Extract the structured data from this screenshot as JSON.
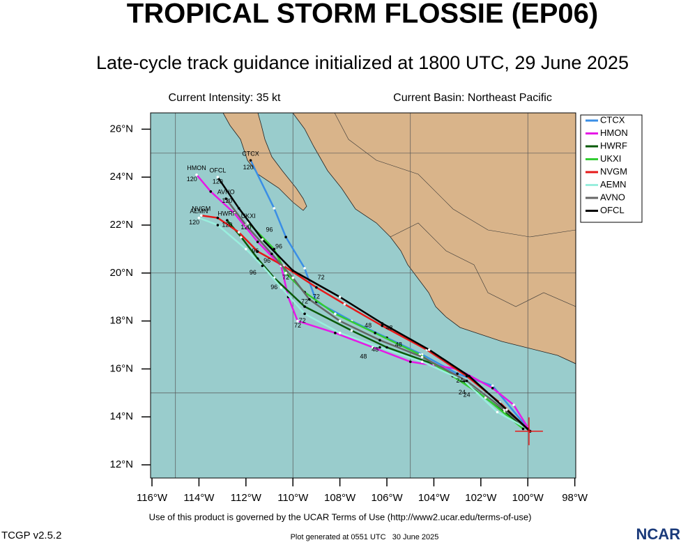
{
  "map": {
    "title": "TROPICAL STORM FLOSSIE (EP06)",
    "subtitle": "Late-cycle track guidance initialized at 1800 UTC, 29 June 2025",
    "intensity": "Current Intensity: 35 kt",
    "basin": "Current Basin: Northeast Pacific",
    "terms": "Use of this product is governed by the UCAR Terms of Use (http://www2.ucar.edu/terms-of-use)",
    "version": "TCGP v2.5.2",
    "generated": "Plot generated at 0551 UTC   30 June 2025",
    "logo": "NCAR",
    "lonlim": [
      -116.06,
      -97.96
    ],
    "latlim": [
      11.45,
      26.68
    ],
    "lonticks": [
      {
        "value": -116,
        "label": "116°W"
      },
      {
        "value": -114,
        "label": "114°W"
      },
      {
        "value": -112,
        "label": "112°W"
      },
      {
        "value": -110,
        "label": "110°W"
      },
      {
        "value": -108,
        "label": "108°W"
      },
      {
        "value": -106,
        "label": "106°W"
      },
      {
        "value": -104,
        "label": "104°W"
      },
      {
        "value": -102,
        "label": "102°W"
      },
      {
        "value": -100,
        "label": "100°W"
      },
      {
        "value": -98,
        "label": "98°W"
      }
    ],
    "latticks": [
      {
        "value": 12,
        "label": "12°N"
      },
      {
        "value": 14,
        "label": "14°N"
      },
      {
        "value": 16,
        "label": "16°N"
      },
      {
        "value": 18,
        "label": "18°N"
      },
      {
        "value": 20,
        "label": "20°N"
      },
      {
        "value": 22,
        "label": "22°N"
      },
      {
        "value": 24,
        "label": "24°N"
      },
      {
        "value": 26,
        "label": "26°N"
      }
    ],
    "grid_lon": [
      -115,
      -110,
      -105,
      -100
    ],
    "grid_lat": [
      15,
      20,
      25
    ],
    "current_position": [
      -99.95,
      13.4
    ],
    "tracks": [
      {
        "name": "CTCX",
        "color": "#3a8ee6",
        "points": [
          [
            -99.9,
            13.4
          ],
          [
            -101.5,
            15.3
          ],
          [
            -103,
            15.8
          ],
          [
            -104.5,
            16.6
          ],
          [
            -106,
            17.3
          ],
          [
            -107.5,
            18
          ],
          [
            -109,
            18.8
          ],
          [
            -109.5,
            20.2
          ],
          [
            -110.3,
            21.5
          ],
          [
            -110.8,
            22.7
          ],
          [
            -111.8,
            24.7
          ]
        ]
      },
      {
        "name": "HMON",
        "color": "#e619e6",
        "points": [
          [
            -99.9,
            13.4
          ],
          [
            -100.6,
            14.5
          ],
          [
            -101.5,
            15.2
          ],
          [
            -103,
            16
          ],
          [
            -105,
            16.3
          ],
          [
            -106.6,
            16.9
          ],
          [
            -108.2,
            17.5
          ],
          [
            -109.8,
            18
          ],
          [
            -110.2,
            19
          ],
          [
            -110.5,
            20.3
          ],
          [
            -111.5,
            21.3
          ],
          [
            -112.5,
            22.5
          ],
          [
            -113.5,
            23.4
          ],
          [
            -114.1,
            24.1
          ]
        ]
      },
      {
        "name": "HWRF",
        "color": "#0a5a0a",
        "points": [
          [
            -99.9,
            13.4
          ],
          [
            -101,
            14.2
          ],
          [
            -102.5,
            15.3
          ],
          [
            -104,
            16.2
          ],
          [
            -106,
            16.9
          ],
          [
            -107.5,
            17.6
          ],
          [
            -109.5,
            18.6
          ],
          [
            -110.8,
            19.8
          ],
          [
            -111.5,
            20.6
          ],
          [
            -112.2,
            21.5
          ],
          [
            -112.8,
            22.2
          ]
        ]
      },
      {
        "name": "UKXI",
        "color": "#33cc33",
        "points": [
          [
            -100.2,
            13.5
          ],
          [
            -101.8,
            14.8
          ],
          [
            -103.2,
            15.7
          ],
          [
            -104.6,
            16.6
          ],
          [
            -106.5,
            17.5
          ],
          [
            -108.2,
            18.3
          ],
          [
            -109.5,
            19.2
          ],
          [
            -110.3,
            20
          ],
          [
            -110.8,
            21
          ],
          [
            -111.9,
            22.1
          ]
        ]
      },
      {
        "name": "NVGM",
        "color": "#e61919",
        "points": [
          [
            -99.9,
            13.4
          ],
          [
            -101.2,
            14.6
          ],
          [
            -102.6,
            15.7
          ],
          [
            -104.3,
            16.8
          ],
          [
            -106.2,
            17.8
          ],
          [
            -107.8,
            18.7
          ],
          [
            -109,
            19.4
          ],
          [
            -110.4,
            20.3
          ],
          [
            -111.5,
            20.9
          ],
          [
            -112.3,
            21.7
          ],
          [
            -113.2,
            22.3
          ],
          [
            -113.9,
            22.4
          ]
        ]
      },
      {
        "name": "AEMN",
        "color": "#99eedd",
        "points": [
          [
            -100,
            13.5
          ],
          [
            -101.3,
            14.2
          ],
          [
            -102.7,
            15.5
          ],
          [
            -104.5,
            16.3
          ],
          [
            -106.3,
            16.9
          ],
          [
            -108,
            17.5
          ],
          [
            -109.5,
            18.3
          ],
          [
            -110.5,
            19.4
          ],
          [
            -111.3,
            20.3
          ],
          [
            -112,
            21
          ],
          [
            -113.2,
            22
          ],
          [
            -114,
            22.3
          ]
        ]
      },
      {
        "name": "AVNO",
        "color": "#666666",
        "points": [
          [
            -99.9,
            13.4
          ],
          [
            -101,
            14.3
          ],
          [
            -102.6,
            15.5
          ],
          [
            -104.5,
            16.5
          ],
          [
            -106.3,
            17.2
          ],
          [
            -108,
            18
          ],
          [
            -109.3,
            18.9
          ],
          [
            -110,
            19.8
          ],
          [
            -110.9,
            20.8
          ],
          [
            -112,
            22
          ],
          [
            -112.85,
            23.1
          ]
        ]
      },
      {
        "name": "OFCL",
        "color": "#000000",
        "points": [
          [
            -99.9,
            13.4
          ],
          [
            -100.9,
            14.3
          ],
          [
            -102.5,
            15.7
          ],
          [
            -104.2,
            16.8
          ],
          [
            -106.2,
            17.9
          ],
          [
            -108,
            19
          ],
          [
            -110,
            20.1
          ],
          [
            -111.3,
            21.4
          ],
          [
            -112.3,
            22.7
          ],
          [
            -113.2,
            24
          ]
        ]
      }
    ],
    "hour_marks": [
      {
        "label": "24",
        "lon": -102.9,
        "lat": 15.5
      },
      {
        "label": "24",
        "lon": -102.8,
        "lat": 15.0
      },
      {
        "label": "24",
        "lon": -102.6,
        "lat": 14.9
      },
      {
        "label": "48",
        "lon": -107.0,
        "lat": 16.5
      },
      {
        "label": "48",
        "lon": -106.8,
        "lat": 17.8
      },
      {
        "label": "48",
        "lon": -106.5,
        "lat": 16.8
      },
      {
        "label": "48",
        "lon": -105.9,
        "lat": 17.7
      },
      {
        "label": "48",
        "lon": -105.5,
        "lat": 17.0
      },
      {
        "label": "72",
        "lon": -109.8,
        "lat": 17.8
      },
      {
        "label": "72",
        "lon": -109.6,
        "lat": 18.0
      },
      {
        "label": "72",
        "lon": -109.5,
        "lat": 18.8
      },
      {
        "label": "72",
        "lon": -109,
        "lat": 19.0
      },
      {
        "label": "72",
        "lon": -110.3,
        "lat": 19.8
      },
      {
        "label": "72",
        "lon": -108.8,
        "lat": 19.8
      },
      {
        "label": "96",
        "lon": -110.8,
        "lat": 19.4
      },
      {
        "label": "96",
        "lon": -111.7,
        "lat": 20
      },
      {
        "label": "96",
        "lon": -111.6,
        "lat": 20.9
      },
      {
        "label": "96",
        "lon": -111.1,
        "lat": 20.5
      },
      {
        "label": "96",
        "lon": -110.6,
        "lat": 21.1
      },
      {
        "label": "96",
        "lon": -111,
        "lat": 21.8
      },
      {
        "label": "120",
        "lon": -114.3,
        "lat": 23.9
      },
      {
        "label": "120",
        "lon": -113.2,
        "lat": 23.8
      },
      {
        "label": "120",
        "lon": -112.8,
        "lat": 23.0
      },
      {
        "label": "120",
        "lon": -111.9,
        "lat": 24.4
      },
      {
        "label": "120",
        "lon": -112.0,
        "lat": 21.9
      },
      {
        "label": "120",
        "lon": -112.8,
        "lat": 22.0
      },
      {
        "label": "120",
        "lon": -114.2,
        "lat": 22.1
      }
    ]
  }
}
